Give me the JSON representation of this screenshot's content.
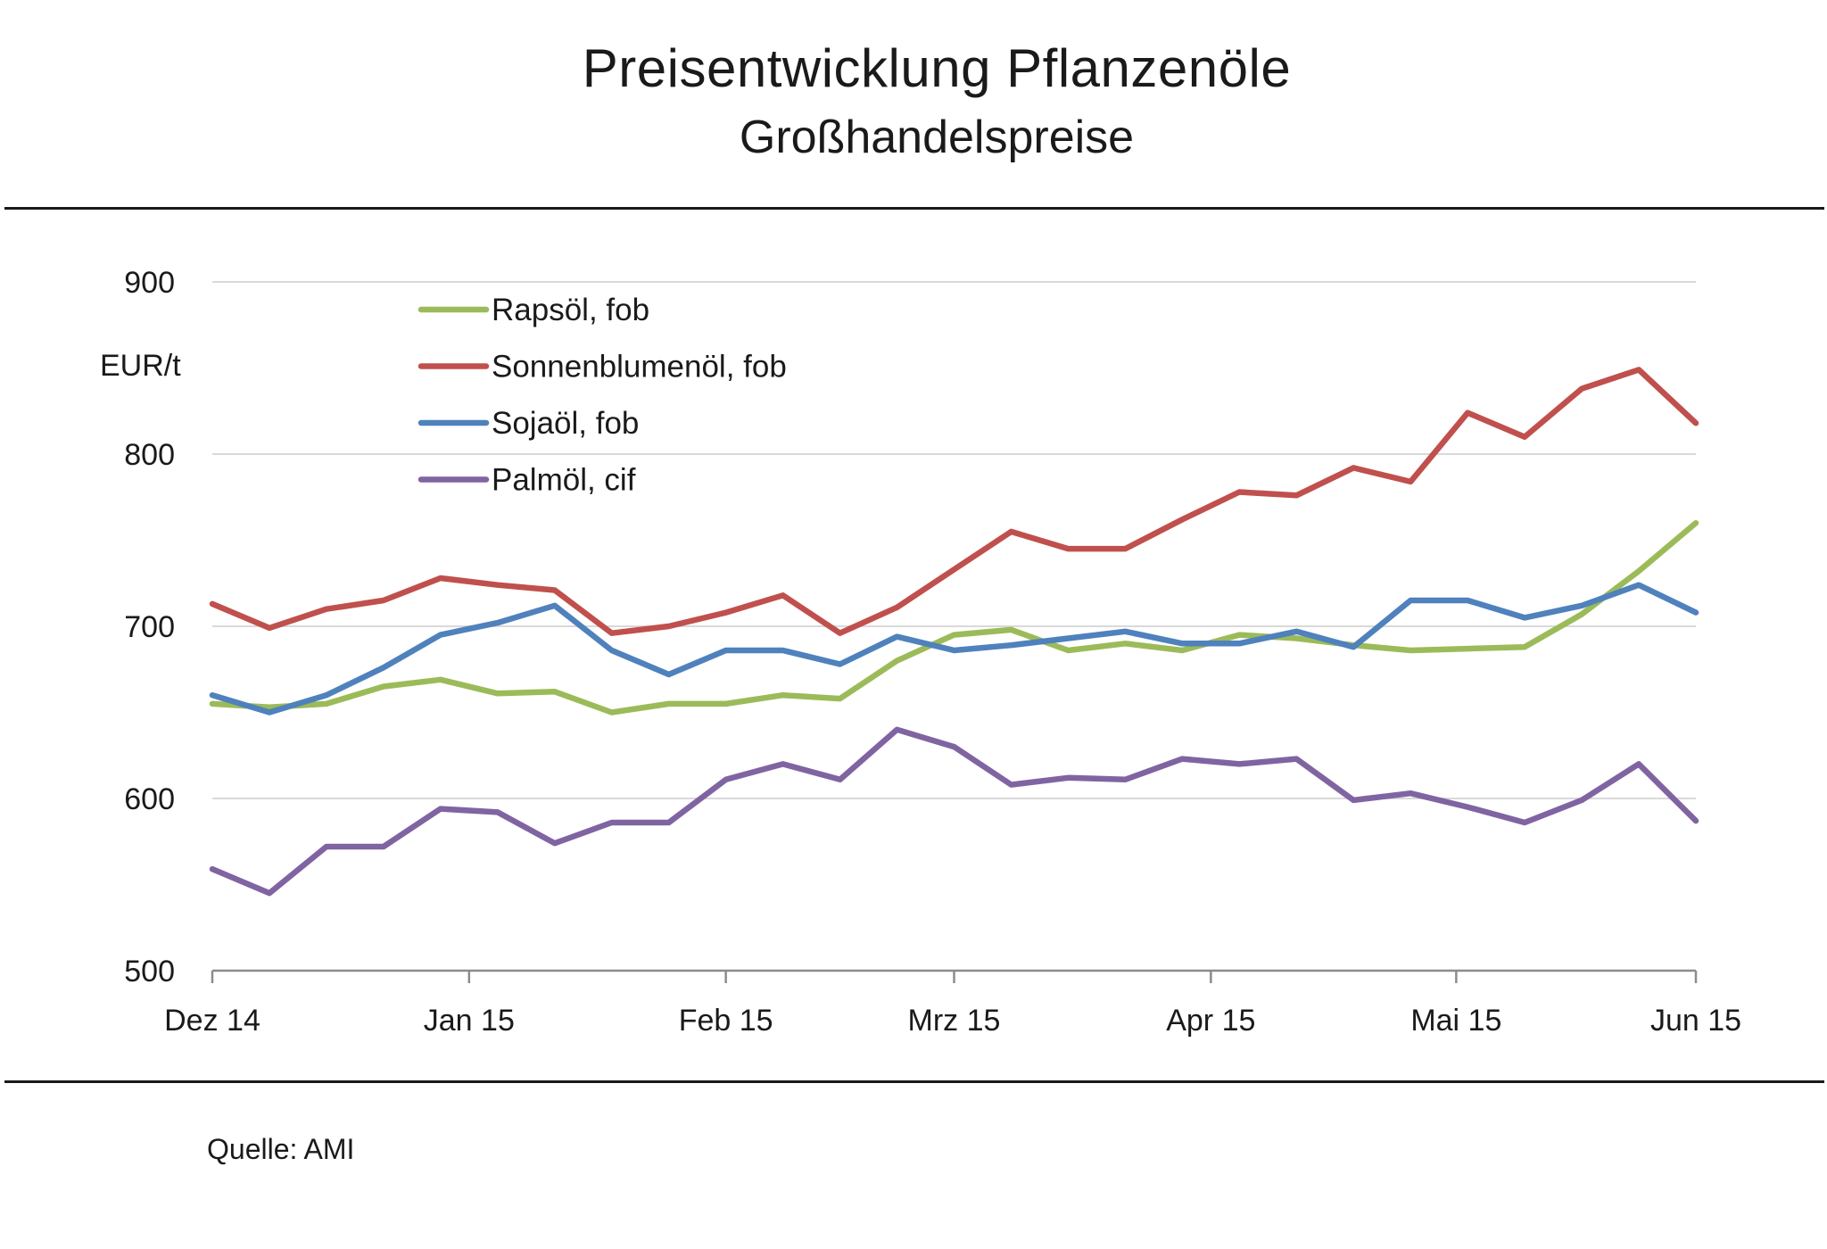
{
  "header": {
    "title": "Preisentwicklung Pflanzenöle",
    "subtitle": "Großhandelspreise"
  },
  "footer": {
    "source": "Quelle: AMI"
  },
  "chart_data": {
    "type": "line",
    "title": "Preisentwicklung Pflanzenöle",
    "subtitle": "Großhandelspreise",
    "xlabel": "",
    "ylabel": "EUR/t",
    "ylim": [
      500,
      900
    ],
    "yticks": [
      500,
      600,
      700,
      800,
      900
    ],
    "grid": true,
    "legend_position": "top-left",
    "x_tick_labels": [
      "Dez 14",
      "Jan 15",
      "Feb 15",
      "Mrz 15",
      "Apr 15",
      "Mai 15",
      "Jun 15"
    ],
    "x_tick_positions": [
      0,
      4.5,
      9,
      13,
      17.5,
      21.8,
      26
    ],
    "series": [
      {
        "name": "Rapsöl, fob",
        "color": "#9bbb59",
        "values": [
          655,
          653,
          655,
          665,
          669,
          661,
          662,
          650,
          655,
          655,
          660,
          658,
          680,
          695,
          698,
          686,
          690,
          686,
          695,
          693,
          689,
          686,
          687,
          688,
          707,
          732,
          760
        ]
      },
      {
        "name": "Sonnenblumenöl, fob",
        "color": "#c0504d",
        "values": [
          713,
          699,
          710,
          715,
          728,
          724,
          721,
          696,
          700,
          708,
          718,
          696,
          711,
          733,
          755,
          745,
          745,
          762,
          778,
          776,
          792,
          784,
          824,
          810,
          838,
          849,
          818
        ]
      },
      {
        "name": "Sojaöl, fob",
        "color": "#4f81bd",
        "values": [
          660,
          650,
          660,
          676,
          695,
          702,
          712,
          686,
          672,
          686,
          686,
          678,
          694,
          686,
          689,
          693,
          697,
          690,
          690,
          697,
          688,
          715,
          715,
          705,
          712,
          724,
          708
        ]
      },
      {
        "name": "Palmöl, cif",
        "color": "#8064a2",
        "values": [
          559,
          545,
          572,
          572,
          594,
          592,
          574,
          586,
          586,
          611,
          620,
          611,
          640,
          630,
          608,
          612,
          611,
          623,
          620,
          623,
          599,
          603,
          595,
          586,
          599,
          620,
          587
        ]
      }
    ]
  }
}
